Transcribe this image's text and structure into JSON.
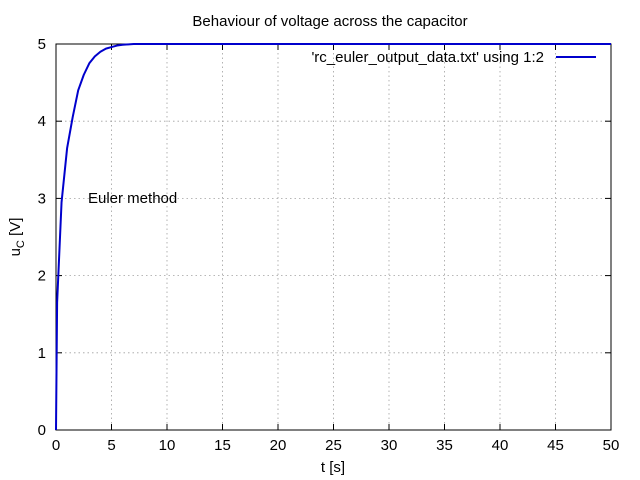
{
  "chart_data": {
    "type": "line",
    "title": "Behaviour of voltage across the capacitor",
    "xlabel": "t [s]",
    "ylabel": {
      "main": "u",
      "sub": "C",
      "rest": " [V]"
    },
    "xlim": [
      0,
      50
    ],
    "ylim": [
      0,
      5
    ],
    "xticks": [
      0,
      5,
      10,
      15,
      20,
      25,
      30,
      35,
      40,
      45,
      50
    ],
    "yticks": [
      0,
      1,
      2,
      3,
      4,
      5
    ],
    "grid": true,
    "legend_position": "top-right",
    "annotation": {
      "text": "Euler method",
      "x": 3,
      "y": 3
    },
    "series": [
      {
        "name": "'rc_euler_output_data.txt' using 1:2",
        "color": "#0000cc",
        "x": [
          0,
          0.1,
          0.5,
          1.0,
          1.5,
          2.0,
          2.5,
          3.0,
          3.5,
          4.0,
          4.5,
          5.0,
          5.5,
          6.0,
          7.0,
          8.0,
          10.0,
          15.0,
          20.0,
          30.0,
          40.0,
          50.0
        ],
        "y": [
          0,
          1.65,
          2.95,
          3.65,
          4.05,
          4.4,
          4.6,
          4.75,
          4.84,
          4.9,
          4.94,
          4.96,
          4.98,
          4.99,
          5.0,
          5.0,
          5.0,
          5.0,
          5.0,
          5.0,
          5.0,
          5.0
        ]
      }
    ]
  }
}
